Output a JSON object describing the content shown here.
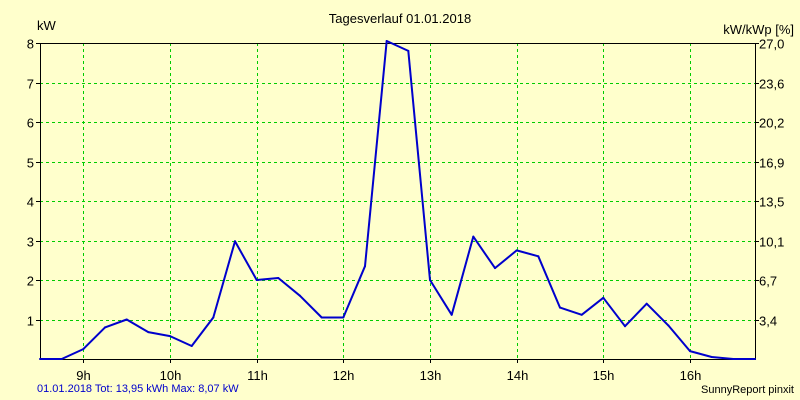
{
  "chart_data": {
    "type": "line",
    "title": "Tagesverlauf 01.01.2018",
    "ylabel_left": "kW",
    "ylabel_right": "kW/kWp [%]",
    "ylim": [
      0,
      8
    ],
    "ylim_right": [
      0,
      27.0
    ],
    "xlim": [
      8.5,
      16.75
    ],
    "x_ticks": [
      9,
      10,
      11,
      12,
      13,
      14,
      15,
      16
    ],
    "x_tick_labels": [
      "9h",
      "10h",
      "11h",
      "12h",
      "13h",
      "14h",
      "15h",
      "16h"
    ],
    "y_ticks_left": [
      1,
      2,
      3,
      4,
      5,
      6,
      7,
      8
    ],
    "y_tick_labels_left": [
      "1",
      "2",
      "3",
      "4",
      "5",
      "6",
      "7",
      "8"
    ],
    "y_tick_labels_right": [
      "3,4",
      "6,7",
      "10,1",
      "13,5",
      "16,9",
      "20,2",
      "23,6",
      "27,0"
    ],
    "grid": true,
    "series": [
      {
        "color": "#0000cc",
        "x": [
          8.5,
          8.75,
          9.0,
          9.25,
          9.5,
          9.75,
          10.0,
          10.25,
          10.5,
          10.75,
          11.0,
          11.25,
          11.5,
          11.75,
          12.0,
          12.25,
          12.5,
          12.75,
          13.0,
          13.25,
          13.5,
          13.75,
          14.0,
          14.25,
          14.5,
          14.75,
          15.0,
          15.25,
          15.5,
          15.75,
          16.0,
          16.25,
          16.5,
          16.75
        ],
        "values": [
          0.0,
          0.0,
          0.25,
          0.8,
          1.0,
          0.68,
          0.58,
          0.33,
          1.05,
          2.98,
          2.0,
          2.05,
          1.6,
          1.05,
          1.05,
          2.35,
          8.05,
          7.8,
          2.0,
          1.12,
          3.1,
          2.3,
          2.75,
          2.6,
          1.3,
          1.12,
          1.55,
          0.83,
          1.4,
          0.85,
          0.2,
          0.05,
          0.0,
          0.0
        ]
      }
    ],
    "footer_left": "01.01.2018 Tot: 13,95 kWh Max: 8,07 kW",
    "footer_right": "SunnyReport pinxit"
  },
  "colors": {
    "background": "#ffffcc",
    "grid": "#00cc00",
    "line": "#0000cc",
    "axis": "#000000",
    "footer_text": "#0000cc"
  }
}
